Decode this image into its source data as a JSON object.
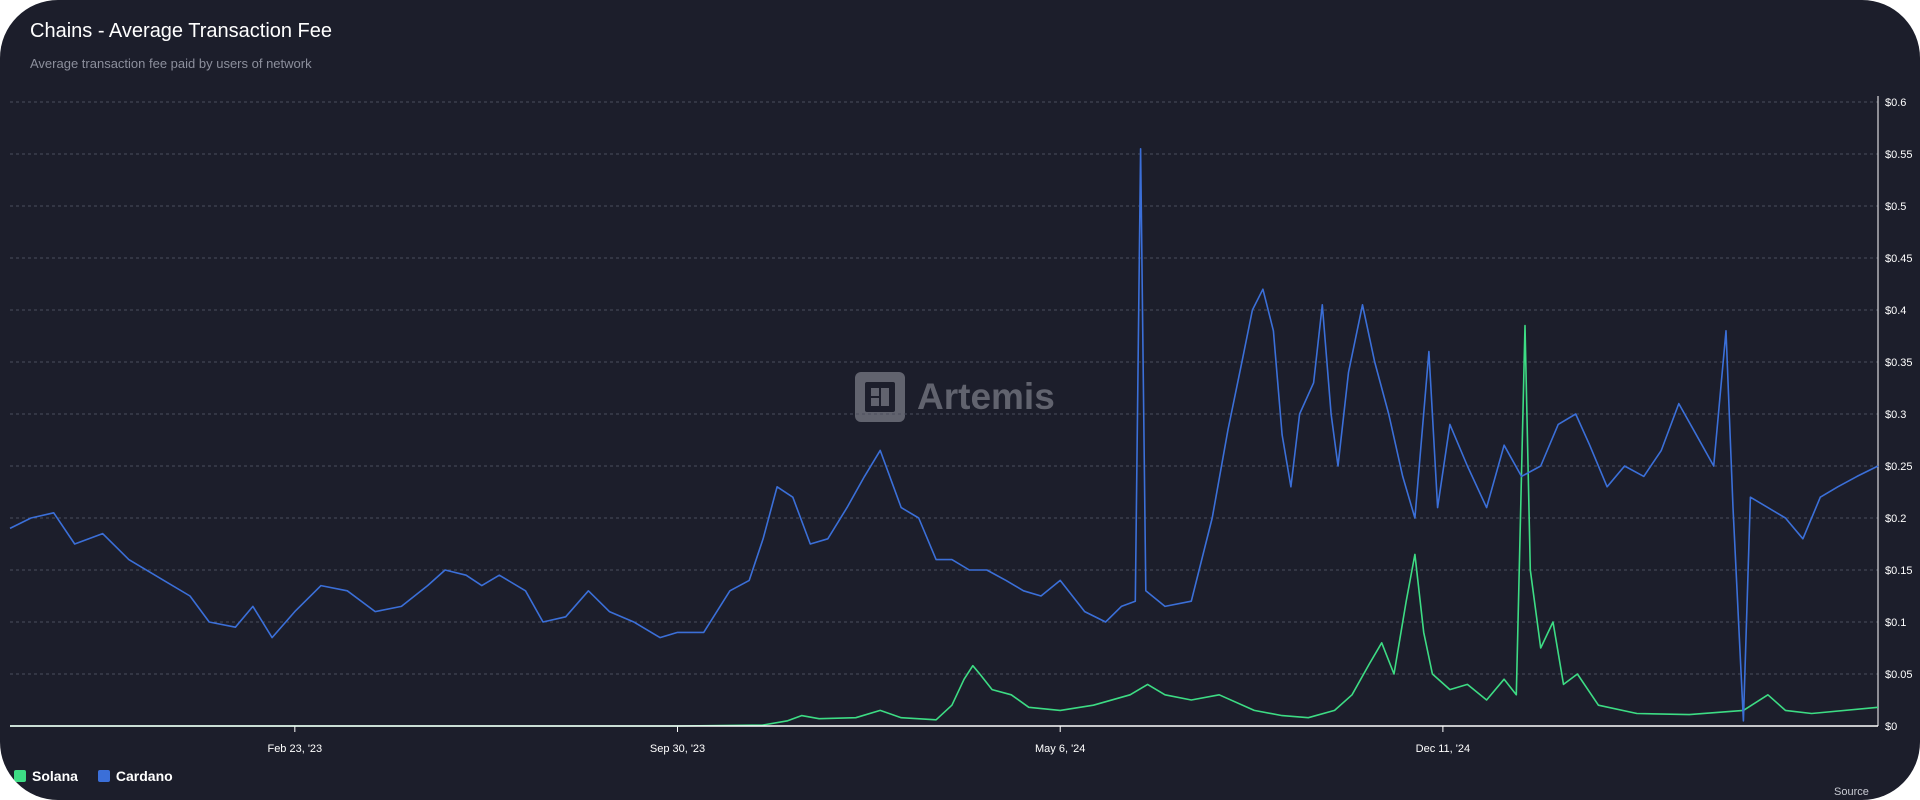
{
  "title": "Chains - Average Transaction Fee",
  "subtitle": "Average transaction fee paid by users of network",
  "watermark": "Artemis",
  "source_label": "Source",
  "chart_data": {
    "type": "line",
    "x_range": [
      "2022-09-13",
      "2025-08-17"
    ],
    "ylim": [
      0,
      0.6
    ],
    "y_ticks": [
      0,
      0.05,
      0.1,
      0.15,
      0.2,
      0.25,
      0.3,
      0.35,
      0.4,
      0.45,
      0.5,
      0.55,
      0.6
    ],
    "y_tick_labels": [
      "$0",
      "$0.05",
      "$0.1",
      "$0.15",
      "$0.2",
      "$0.25",
      "$0.3",
      "$0.35",
      "$0.4",
      "$0.45",
      "$0.5",
      "$0.55",
      "$0.6"
    ],
    "x_ticks": [
      "2023-02-23",
      "2023-09-30",
      "2024-05-06",
      "2024-12-11"
    ],
    "x_tick_labels": [
      "Feb 23, '23",
      "Sep 30, '23",
      "May 6, '24",
      "Dec 11, '24"
    ],
    "grid": true,
    "legend_position": "bottom-left",
    "series": [
      {
        "name": "Solana",
        "color": "#3ddc84",
        "points": [
          [
            "2022-09-13",
            0
          ],
          [
            "2023-09-30",
            0
          ],
          [
            "2023-11-18",
            0.001
          ],
          [
            "2023-12-02",
            0.005
          ],
          [
            "2023-12-10",
            0.01
          ],
          [
            "2023-12-20",
            0.007
          ],
          [
            "2024-01-10",
            0.008
          ],
          [
            "2024-01-24",
            0.015
          ],
          [
            "2024-02-05",
            0.008
          ],
          [
            "2024-02-25",
            0.006
          ],
          [
            "2024-03-05",
            0.02
          ],
          [
            "2024-03-12",
            0.045
          ],
          [
            "2024-03-17",
            0.058
          ],
          [
            "2024-03-21",
            0.05
          ],
          [
            "2024-03-28",
            0.035
          ],
          [
            "2024-04-08",
            0.03
          ],
          [
            "2024-04-18",
            0.018
          ],
          [
            "2024-05-06",
            0.015
          ],
          [
            "2024-05-25",
            0.02
          ],
          [
            "2024-06-15",
            0.03
          ],
          [
            "2024-06-25",
            0.04
          ],
          [
            "2024-07-05",
            0.03
          ],
          [
            "2024-07-20",
            0.025
          ],
          [
            "2024-08-05",
            0.03
          ],
          [
            "2024-08-25",
            0.015
          ],
          [
            "2024-09-10",
            0.01
          ],
          [
            "2024-09-25",
            0.008
          ],
          [
            "2024-10-10",
            0.015
          ],
          [
            "2024-10-20",
            0.03
          ],
          [
            "2024-10-30",
            0.06
          ],
          [
            "2024-11-06",
            0.08
          ],
          [
            "2024-11-13",
            0.05
          ],
          [
            "2024-11-20",
            0.12
          ],
          [
            "2024-11-25",
            0.165
          ],
          [
            "2024-11-30",
            0.09
          ],
          [
            "2024-12-05",
            0.05
          ],
          [
            "2024-12-15",
            0.035
          ],
          [
            "2024-12-25",
            0.04
          ],
          [
            "2025-01-05",
            0.025
          ],
          [
            "2025-01-15",
            0.045
          ],
          [
            "2025-01-22",
            0.03
          ],
          [
            "2025-01-27",
            0.385
          ],
          [
            "2025-01-30",
            0.15
          ],
          [
            "2025-02-05",
            0.075
          ],
          [
            "2025-02-12",
            0.1
          ],
          [
            "2025-02-18",
            0.04
          ],
          [
            "2025-02-26",
            0.05
          ],
          [
            "2025-03-10",
            0.02
          ],
          [
            "2025-04-01",
            0.012
          ],
          [
            "2025-05-01",
            0.011
          ],
          [
            "2025-06-01",
            0.015
          ],
          [
            "2025-06-15",
            0.03
          ],
          [
            "2025-06-25",
            0.015
          ],
          [
            "2025-07-10",
            0.012
          ],
          [
            "2025-08-17",
            0.018
          ]
        ]
      },
      {
        "name": "Cardano",
        "color": "#3b6fd8",
        "points": [
          [
            "2022-09-13",
            0.19
          ],
          [
            "2022-09-25",
            0.2
          ],
          [
            "2022-10-08",
            0.205
          ],
          [
            "2022-10-20",
            0.175
          ],
          [
            "2022-11-05",
            0.185
          ],
          [
            "2022-11-20",
            0.16
          ],
          [
            "2022-12-10",
            0.14
          ],
          [
            "2022-12-25",
            0.125
          ],
          [
            "2023-01-05",
            0.1
          ],
          [
            "2023-01-20",
            0.095
          ],
          [
            "2023-01-30",
            0.115
          ],
          [
            "2023-02-10",
            0.085
          ],
          [
            "2023-02-23",
            0.11
          ],
          [
            "2023-03-10",
            0.135
          ],
          [
            "2023-03-25",
            0.13
          ],
          [
            "2023-04-10",
            0.11
          ],
          [
            "2023-04-25",
            0.115
          ],
          [
            "2023-05-10",
            0.135
          ],
          [
            "2023-05-20",
            0.15
          ],
          [
            "2023-06-01",
            0.145
          ],
          [
            "2023-06-10",
            0.135
          ],
          [
            "2023-06-20",
            0.145
          ],
          [
            "2023-07-05",
            0.13
          ],
          [
            "2023-07-15",
            0.1
          ],
          [
            "2023-07-28",
            0.105
          ],
          [
            "2023-08-10",
            0.13
          ],
          [
            "2023-08-22",
            0.11
          ],
          [
            "2023-09-05",
            0.1
          ],
          [
            "2023-09-20",
            0.085
          ],
          [
            "2023-09-30",
            0.09
          ],
          [
            "2023-10-15",
            0.09
          ],
          [
            "2023-10-30",
            0.13
          ],
          [
            "2023-11-10",
            0.14
          ],
          [
            "2023-11-18",
            0.18
          ],
          [
            "2023-11-26",
            0.23
          ],
          [
            "2023-12-05",
            0.22
          ],
          [
            "2023-12-15",
            0.175
          ],
          [
            "2023-12-25",
            0.18
          ],
          [
            "2024-01-05",
            0.21
          ],
          [
            "2024-01-15",
            0.24
          ],
          [
            "2024-01-24",
            0.265
          ],
          [
            "2024-02-05",
            0.21
          ],
          [
            "2024-02-15",
            0.2
          ],
          [
            "2024-02-25",
            0.16
          ],
          [
            "2024-03-05",
            0.16
          ],
          [
            "2024-03-15",
            0.15
          ],
          [
            "2024-03-25",
            0.15
          ],
          [
            "2024-04-05",
            0.14
          ],
          [
            "2024-04-15",
            0.13
          ],
          [
            "2024-04-25",
            0.125
          ],
          [
            "2024-05-06",
            0.14
          ],
          [
            "2024-05-20",
            0.11
          ],
          [
            "2024-06-01",
            0.1
          ],
          [
            "2024-06-10",
            0.115
          ],
          [
            "2024-06-18",
            0.12
          ],
          [
            "2024-06-21",
            0.555
          ],
          [
            "2024-06-24",
            0.13
          ],
          [
            "2024-07-05",
            0.115
          ],
          [
            "2024-07-20",
            0.12
          ],
          [
            "2024-08-01",
            0.2
          ],
          [
            "2024-08-10",
            0.285
          ],
          [
            "2024-08-18",
            0.35
          ],
          [
            "2024-08-24",
            0.4
          ],
          [
            "2024-08-30",
            0.42
          ],
          [
            "2024-09-05",
            0.38
          ],
          [
            "2024-09-10",
            0.28
          ],
          [
            "2024-09-15",
            0.23
          ],
          [
            "2024-09-20",
            0.3
          ],
          [
            "2024-09-28",
            0.33
          ],
          [
            "2024-10-03",
            0.405
          ],
          [
            "2024-10-08",
            0.3
          ],
          [
            "2024-10-12",
            0.25
          ],
          [
            "2024-10-18",
            0.34
          ],
          [
            "2024-10-26",
            0.405
          ],
          [
            "2024-11-02",
            0.35
          ],
          [
            "2024-11-10",
            0.3
          ],
          [
            "2024-11-18",
            0.24
          ],
          [
            "2024-11-25",
            0.2
          ],
          [
            "2024-12-03",
            0.36
          ],
          [
            "2024-12-08",
            0.21
          ],
          [
            "2024-12-15",
            0.29
          ],
          [
            "2024-12-25",
            0.25
          ],
          [
            "2025-01-05",
            0.21
          ],
          [
            "2025-01-15",
            0.27
          ],
          [
            "2025-01-25",
            0.24
          ],
          [
            "2025-02-05",
            0.25
          ],
          [
            "2025-02-15",
            0.29
          ],
          [
            "2025-02-25",
            0.3
          ],
          [
            "2025-03-05",
            0.27
          ],
          [
            "2025-03-15",
            0.23
          ],
          [
            "2025-03-25",
            0.25
          ],
          [
            "2025-04-05",
            0.24
          ],
          [
            "2025-04-15",
            0.265
          ],
          [
            "2025-04-25",
            0.31
          ],
          [
            "2025-05-05",
            0.28
          ],
          [
            "2025-05-15",
            0.25
          ],
          [
            "2025-05-22",
            0.38
          ],
          [
            "2025-05-26",
            0.21
          ],
          [
            "2025-06-01",
            0.005
          ],
          [
            "2025-06-05",
            0.22
          ],
          [
            "2025-06-15",
            0.21
          ],
          [
            "2025-06-25",
            0.2
          ],
          [
            "2025-07-05",
            0.18
          ],
          [
            "2025-07-15",
            0.22
          ],
          [
            "2025-07-25",
            0.23
          ],
          [
            "2025-08-05",
            0.24
          ],
          [
            "2025-08-17",
            0.25
          ]
        ]
      }
    ]
  }
}
